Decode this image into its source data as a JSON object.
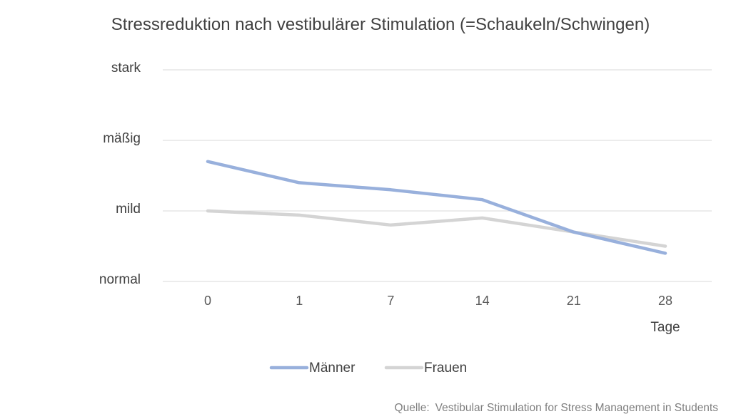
{
  "chart_data": {
    "type": "line",
    "title": "Stressreduktion nach vestibulärer Stimulation (=Schaukeln/Schwingen)",
    "xlabel": "Tage",
    "ylabel": "",
    "categories": [
      "0",
      "1",
      "7",
      "14",
      "21",
      "28"
    ],
    "y_tick_labels": [
      "normal",
      "mild",
      "mäßig",
      "stark"
    ],
    "y_tick_values": [
      0,
      1,
      2,
      3
    ],
    "ylim": [
      0,
      3
    ],
    "grid": true,
    "legend_position": "bottom",
    "series": [
      {
        "name": "Männer",
        "color": "#98b0dc",
        "values": [
          1.7,
          1.4,
          1.3,
          1.16,
          0.7,
          0.4
        ]
      },
      {
        "name": "Frauen",
        "color": "#d4d4d4",
        "values": [
          1.0,
          0.94,
          0.8,
          0.9,
          0.7,
          0.5
        ]
      }
    ]
  },
  "source": {
    "label": "Quelle:",
    "text": "Vestibular Stimulation for Stress Management in Students"
  },
  "colors": {
    "grid": "#d9d9d9",
    "text": "#404040"
  }
}
